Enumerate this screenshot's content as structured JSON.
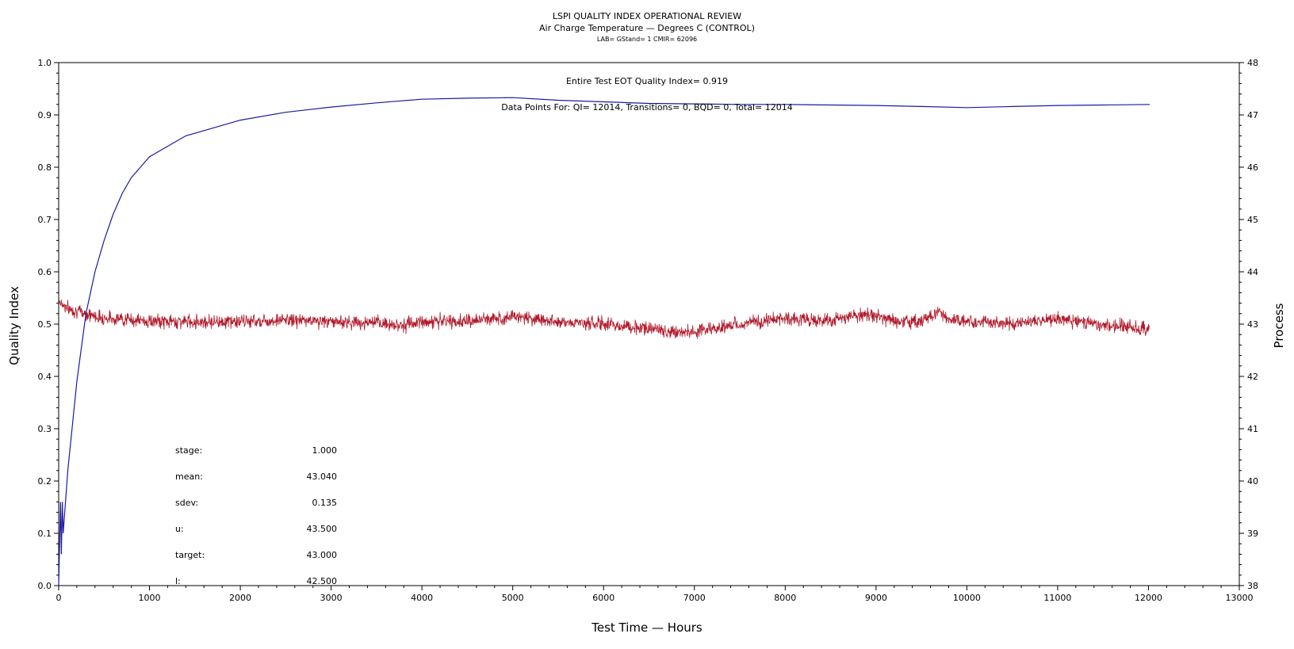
{
  "header": {
    "title": "LSPI QUALITY INDEX OPERATIONAL REVIEW",
    "subtitle": "Air Charge Temperature — Degrees C (CONTROL)",
    "subsubtitle": "LAB= GStand= 1 CMIR= 62096"
  },
  "annotations": {
    "eot": "Entire Test EOT Quality Index=   0.919",
    "datapoints": "Data Points For: QI= 12014, Transitions=     0, BQD=     0, Total= 12014"
  },
  "stats": [
    {
      "label": "stage:",
      "value": "1.000"
    },
    {
      "label": "mean:",
      "value": "43.040"
    },
    {
      "label": "sdev:",
      "value": "0.135"
    },
    {
      "label": "u:",
      "value": "43.500"
    },
    {
      "label": "target:",
      "value": "43.000"
    },
    {
      "label": "l:",
      "value": "42.500"
    }
  ],
  "colors": {
    "quality_index": "#1a1aa6",
    "process": "#b0182a"
  },
  "chart_data": {
    "type": "line",
    "xlabel": "Test Time — Hours",
    "ylabel": "Quality Index",
    "y2label": "Process",
    "xlim": [
      0,
      13000
    ],
    "ylim": [
      0,
      1.0
    ],
    "y2lim": [
      38,
      48
    ],
    "xticks": [
      "0",
      "1000",
      "2000",
      "3000",
      "4000",
      "5000",
      "6000",
      "7000",
      "8000",
      "9000",
      "10000",
      "11000",
      "12000",
      "13000"
    ],
    "yticks": [
      "0.0",
      "0.1",
      "0.2",
      "0.3",
      "0.4",
      "0.5",
      "0.6",
      "0.7",
      "0.8",
      "0.9",
      "1.0"
    ],
    "y2ticks": [
      "38",
      "39",
      "40",
      "41",
      "42",
      "43",
      "44",
      "45",
      "46",
      "47",
      "48"
    ],
    "series": [
      {
        "name": "",
        "axis": "left",
        "x": [
          0,
          20,
          30,
          40,
          50,
          100,
          200,
          300,
          400,
          500,
          600,
          700,
          800,
          900,
          1000,
          1200,
          1400,
          1600,
          1800,
          2000,
          2500,
          3000,
          3500,
          4000,
          4500,
          5000,
          5500,
          6000,
          6500,
          7000,
          7500,
          8000,
          8500,
          9000,
          9500,
          10000,
          10500,
          11000,
          11500,
          12014
        ],
        "y": [
          0.0,
          0.16,
          0.06,
          0.16,
          0.1,
          0.22,
          0.39,
          0.52,
          0.6,
          0.66,
          0.71,
          0.75,
          0.78,
          0.8,
          0.82,
          0.84,
          0.86,
          0.87,
          0.88,
          0.89,
          0.905,
          0.915,
          0.923,
          0.93,
          0.932,
          0.933,
          0.928,
          0.925,
          0.922,
          0.921,
          0.92,
          0.92,
          0.919,
          0.918,
          0.916,
          0.914,
          0.916,
          0.918,
          0.919,
          0.92
        ]
      },
      {
        "name": "",
        "axis": "right",
        "x": [
          0,
          100,
          200,
          300,
          400,
          500,
          700,
          1000,
          1500,
          2000,
          2500,
          3000,
          3500,
          3800,
          4000,
          4500,
          5000,
          5500,
          6000,
          6500,
          6800,
          7000,
          7500,
          8000,
          8500,
          8900,
          9200,
          9500,
          9700,
          9800,
          10000,
          10500,
          11000,
          11500,
          12014
        ],
        "y": [
          43.45,
          43.3,
          43.25,
          43.2,
          43.15,
          43.12,
          43.1,
          43.05,
          43.05,
          43.05,
          43.08,
          43.05,
          43.02,
          42.98,
          43.05,
          43.05,
          43.15,
          43.05,
          43.0,
          42.92,
          42.85,
          42.85,
          43.0,
          43.12,
          43.05,
          43.2,
          43.05,
          43.05,
          43.25,
          43.1,
          43.05,
          43.0,
          43.1,
          43.0,
          42.9
        ]
      }
    ]
  }
}
